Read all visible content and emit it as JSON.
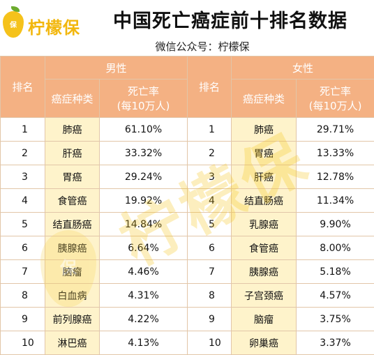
{
  "brand": {
    "name": "柠檬保",
    "mark": "保"
  },
  "title": "中国死亡癌症前十排名数据",
  "subtitle": "微信公众号：柠檬保",
  "watermark": "柠檬保",
  "headers": {
    "rank": "排名",
    "male": "男性",
    "female": "女性",
    "cancer_type": "癌症种类",
    "rate_line1": "死亡率",
    "rate_line2": "(每10万人)"
  },
  "rows": [
    {
      "rank_m": "1",
      "male_cancer": "肺癌",
      "male_rate": "61.10%",
      "rank_f": "1",
      "female_cancer": "肺癌",
      "female_rate": "29.71%"
    },
    {
      "rank_m": "2",
      "male_cancer": "肝癌",
      "male_rate": "33.32%",
      "rank_f": "2",
      "female_cancer": "胃癌",
      "female_rate": "13.33%"
    },
    {
      "rank_m": "3",
      "male_cancer": "胃癌",
      "male_rate": "29.24%",
      "rank_f": "3",
      "female_cancer": "肝癌",
      "female_rate": "12.78%"
    },
    {
      "rank_m": "4",
      "male_cancer": "食管癌",
      "male_rate": "19.92%",
      "rank_f": "4",
      "female_cancer": "结直肠癌",
      "female_rate": "11.34%"
    },
    {
      "rank_m": "5",
      "male_cancer": "结直肠癌",
      "male_rate": "14.84%",
      "rank_f": "5",
      "female_cancer": "乳腺癌",
      "female_rate": "9.90%"
    },
    {
      "rank_m": "6",
      "male_cancer": "胰腺癌",
      "male_rate": "6.64%",
      "rank_f": "6",
      "female_cancer": "食管癌",
      "female_rate": "8.00%"
    },
    {
      "rank_m": "7",
      "male_cancer": "脑瘤",
      "male_rate": "4.46%",
      "rank_f": "7",
      "female_cancer": "胰腺癌",
      "female_rate": "5.18%"
    },
    {
      "rank_m": "8",
      "male_cancer": "白血病",
      "male_rate": "4.31%",
      "rank_f": "8",
      "female_cancer": "子宫颈癌",
      "female_rate": "4.57%"
    },
    {
      "rank_m": "9",
      "male_cancer": "前列腺癌",
      "male_rate": "4.22%",
      "rank_f": "9",
      "female_cancer": "脑瘤",
      "female_rate": "3.75%"
    },
    {
      "rank_m": "10",
      "male_cancer": "淋巴癌",
      "male_rate": "4.13%",
      "rank_f": "10",
      "female_cancer": "卵巢癌",
      "female_rate": "3.37%"
    }
  ]
}
